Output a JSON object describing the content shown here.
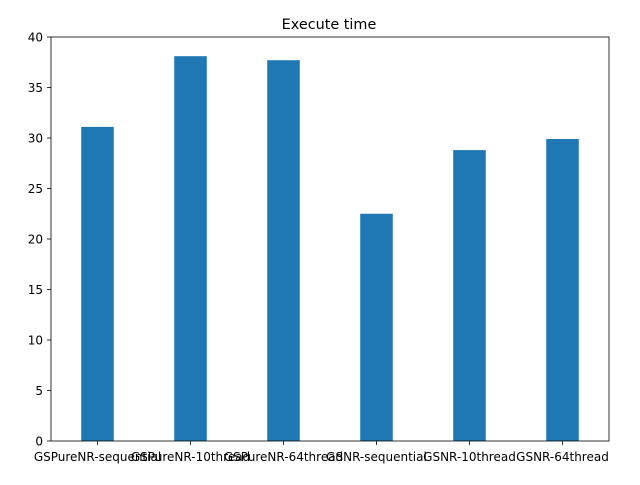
{
  "chart_data": {
    "type": "bar",
    "title": "Execute time",
    "xlabel": "",
    "ylabel": "",
    "categories": [
      "GSPureNR-sequential",
      "GSPureNR-10thread",
      "GSPureNR-64thread",
      "GSNR-sequential",
      "GSNR-10thread",
      "GSNR-64thread"
    ],
    "values": [
      31.1,
      38.1,
      37.7,
      22.5,
      28.8,
      29.9
    ],
    "ylim": [
      0,
      40
    ],
    "yticks": [
      0,
      5,
      10,
      15,
      20,
      25,
      30,
      35,
      40
    ],
    "grid": false,
    "bar_color": "#1f77b4"
  }
}
